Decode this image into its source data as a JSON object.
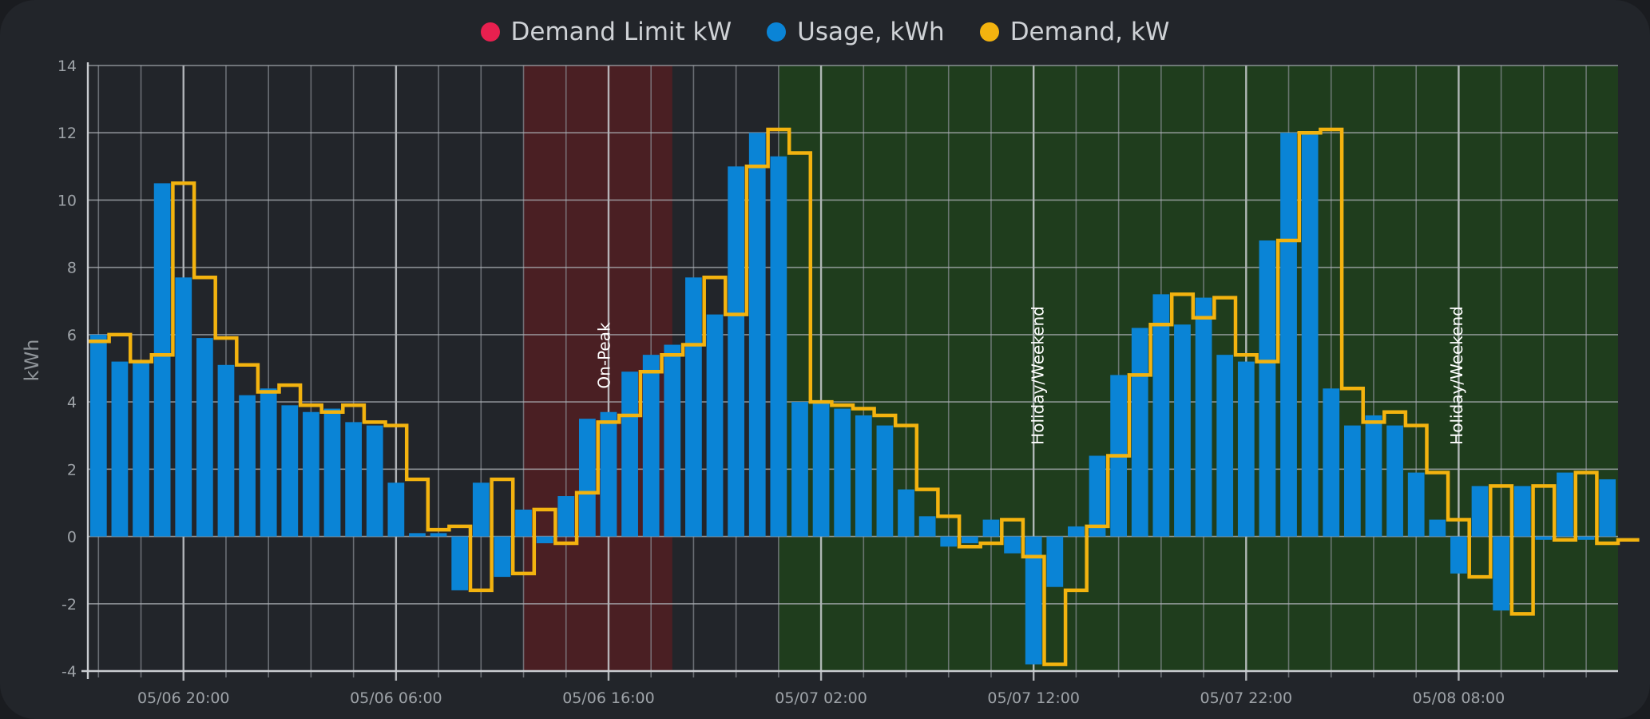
{
  "legend": [
    {
      "label": "Demand Limit kW",
      "color": "#e8204f"
    },
    {
      "label": "Usage, kWh",
      "color": "#0a84d6"
    },
    {
      "label": "Demand, kW",
      "color": "#f3b30f"
    }
  ],
  "chart_data": {
    "type": "bar",
    "ylabel": "kWh",
    "ylim": [
      -4,
      14
    ],
    "yticks": [
      -4,
      -2,
      0,
      2,
      4,
      6,
      8,
      10,
      12,
      14
    ],
    "grid": true,
    "legend_position": "top",
    "x_start_hour": 15.5,
    "x_end_hour": 87.5,
    "bar_interval_hours": 1,
    "x_ticks": [
      {
        "hour": 20,
        "label": "05/06 20:00"
      },
      {
        "hour": 30,
        "label": "05/06 06:00"
      },
      {
        "hour": 40,
        "label": "05/06 16:00"
      },
      {
        "hour": 50,
        "label": "05/07 02:00"
      },
      {
        "hour": 60,
        "label": "05/07 12:00"
      },
      {
        "hour": 70,
        "label": "05/07 22:00"
      },
      {
        "hour": 80,
        "label": "05/08 08:00"
      }
    ],
    "bands": [
      {
        "start_hour": 36,
        "end_hour": 43,
        "label": "On-Peak",
        "color": "#4a1f23",
        "label_hour": 39.8
      },
      {
        "start_hour": 48,
        "end_hour": 87.5,
        "label": "Holiday/Weekend",
        "color": "#1f3d1d",
        "label_hour": 60.2
      },
      {
        "start_hour": 48,
        "end_hour": 87.5,
        "label": "Holiday/Weekend",
        "color": "none",
        "label_hour": 79.9
      }
    ],
    "series": [
      {
        "name": "Usage, kWh",
        "type": "bar",
        "color": "#0a84d6",
        "values": [
          6.0,
          5.2,
          5.2,
          10.5,
          7.7,
          5.9,
          5.1,
          4.2,
          4.4,
          3.9,
          3.7,
          3.8,
          3.4,
          3.3,
          1.6,
          0.1,
          0.1,
          -1.6,
          1.6,
          -1.2,
          0.8,
          -0.2,
          1.2,
          3.5,
          3.7,
          4.9,
          5.4,
          5.7,
          7.7,
          6.6,
          11.0,
          12.0,
          11.3,
          4.0,
          4.0,
          3.8,
          3.6,
          3.3,
          1.4,
          0.6,
          -0.3,
          -0.2,
          0.5,
          -0.5,
          -3.8,
          -1.5,
          0.3,
          2.4,
          4.8,
          6.2,
          7.2,
          6.3,
          7.1,
          5.4,
          5.2,
          8.8,
          12.0,
          12.0,
          4.4,
          3.3,
          3.6,
          3.3,
          1.9,
          0.5,
          -1.1,
          1.5,
          -2.2,
          1.5,
          -0.1,
          1.9,
          -0.1,
          1.7
        ]
      },
      {
        "name": "Demand, kW",
        "type": "step",
        "color": "#f3b30f",
        "values": [
          5.8,
          6.0,
          5.2,
          5.4,
          10.5,
          7.7,
          5.9,
          5.1,
          4.3,
          4.5,
          3.9,
          3.7,
          3.9,
          3.4,
          3.3,
          1.7,
          0.2,
          0.3,
          -1.6,
          1.7,
          -1.1,
          0.8,
          -0.2,
          1.3,
          3.4,
          3.6,
          4.9,
          5.4,
          5.7,
          7.7,
          6.6,
          11.0,
          12.1,
          11.4,
          4.0,
          3.9,
          3.8,
          3.6,
          3.3,
          1.4,
          0.6,
          -0.3,
          -0.2,
          0.5,
          -0.6,
          -3.8,
          -1.6,
          0.3,
          2.4,
          4.8,
          6.3,
          7.2,
          6.5,
          7.1,
          5.4,
          5.2,
          8.8,
          12.0,
          12.1,
          4.4,
          3.4,
          3.7,
          3.3,
          1.9,
          0.5,
          -1.2,
          1.5,
          -2.3,
          1.5,
          -0.1,
          1.9,
          -0.2,
          -0.1
        ]
      }
    ]
  }
}
